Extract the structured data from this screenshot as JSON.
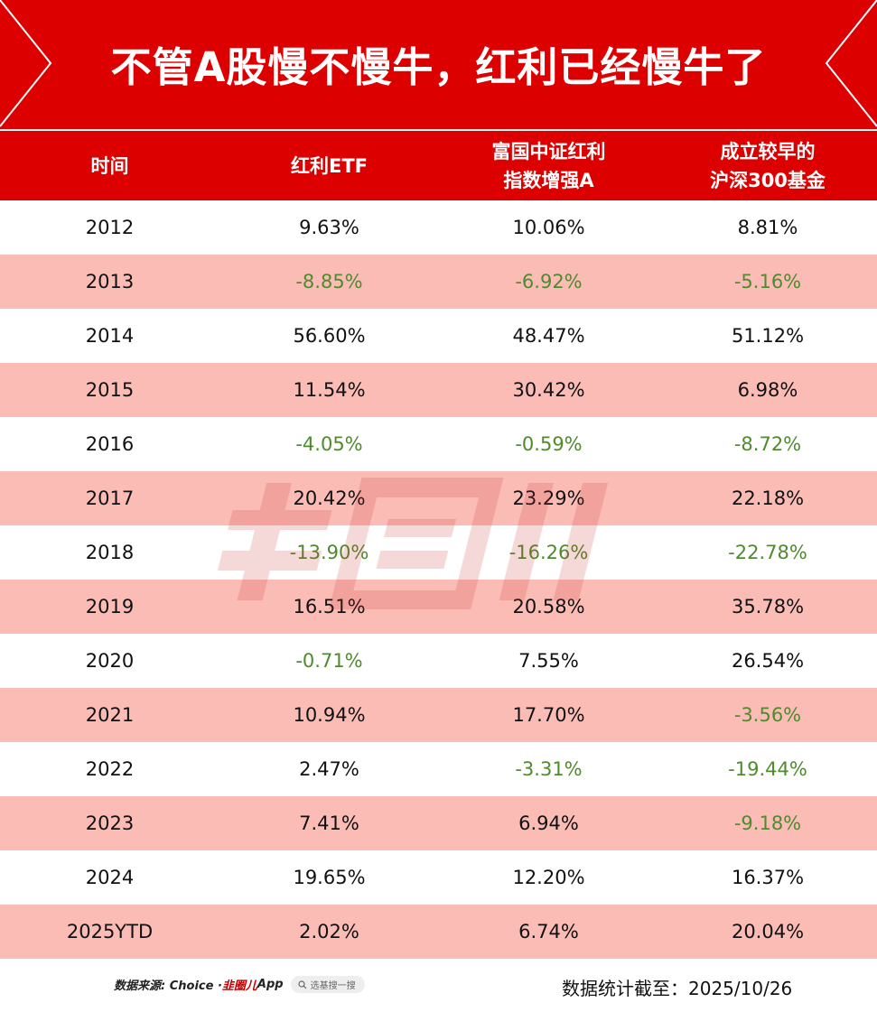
{
  "title": "不管A股慢不慢牛，红利已经慢牛了",
  "headers": [
    [
      "时间"
    ],
    [
      "红利ETF"
    ],
    [
      "富国中证红利",
      "指数增强A"
    ],
    [
      "成立较早的",
      "沪深300基金"
    ]
  ],
  "rows": [
    {
      "year": "2012",
      "v": [
        "9.63%",
        "10.06%",
        "8.81%"
      ]
    },
    {
      "year": "2013",
      "v": [
        "-8.85%",
        "-6.92%",
        "-5.16%"
      ]
    },
    {
      "year": "2014",
      "v": [
        "56.60%",
        "48.47%",
        "51.12%"
      ]
    },
    {
      "year": "2015",
      "v": [
        "11.54%",
        "30.42%",
        "6.98%"
      ]
    },
    {
      "year": "2016",
      "v": [
        "-4.05%",
        "-0.59%",
        "-8.72%"
      ]
    },
    {
      "year": "2017",
      "v": [
        "20.42%",
        "23.29%",
        "22.18%"
      ]
    },
    {
      "year": "2018",
      "v": [
        "-13.90%",
        "-16.26%",
        "-22.78%"
      ]
    },
    {
      "year": "2019",
      "v": [
        "16.51%",
        "20.58%",
        "35.78%"
      ]
    },
    {
      "year": "2020",
      "v": [
        "-0.71%",
        "7.55%",
        "26.54%"
      ]
    },
    {
      "year": "2021",
      "v": [
        "10.94%",
        "17.70%",
        "-3.56%"
      ]
    },
    {
      "year": "2022",
      "v": [
        "2.47%",
        "-3.31%",
        "-19.44%"
      ]
    },
    {
      "year": "2023",
      "v": [
        "7.41%",
        "6.94%",
        "-9.18%"
      ]
    },
    {
      "year": "2024",
      "v": [
        "19.65%",
        "12.20%",
        "16.37%"
      ]
    },
    {
      "year": "2025YTD",
      "v": [
        "2.02%",
        "6.74%",
        "20.04%"
      ]
    }
  ],
  "footer": {
    "source": "数据来源: Choice · ",
    "app_logo": "韭圈儿",
    "app_suffix": "App",
    "search_placeholder": "选基搜一搜",
    "stat_date": "数据统计截至：2025/10/26"
  },
  "watermark": "韭圈儿",
  "colors": {
    "brand_red": "#dd0000",
    "alt_row": "#fbbcb6",
    "negative_green": "#4f8a2e",
    "text": "#111111"
  },
  "icons": [
    "search-icon"
  ]
}
